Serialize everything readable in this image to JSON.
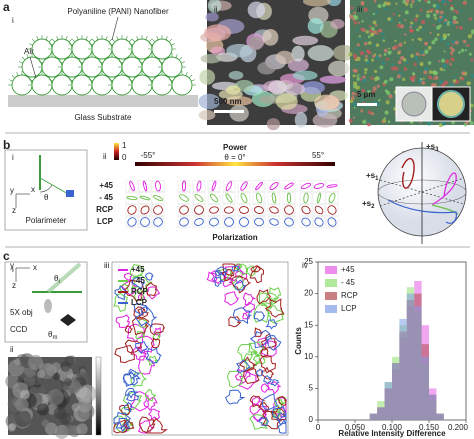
{
  "panels": {
    "a": {
      "label": "a",
      "i": {
        "label": "i",
        "fiber_label": "Polyaniline (PANI) Nanofiber",
        "air_label": "Air",
        "substrate_label": "Glass Substrate"
      },
      "ii": {
        "label": "ii",
        "scale_bar": "500 nm"
      },
      "iii": {
        "label": "iii",
        "scale_bar": "5 µm"
      }
    },
    "b": {
      "label": "b",
      "i": {
        "label": "i",
        "axis_y": "y",
        "axis_x": "x",
        "axis_z": "z",
        "angle": "θ",
        "device": "Polarimeter"
      },
      "ii": {
        "label": "ii",
        "colorbar_ticks": [
          1,
          0
        ],
        "angle_left": "-55°",
        "power_label": "Power",
        "angle_center": "θ = 0°",
        "angle_right": "55°",
        "rows": [
          {
            "name": "+45",
            "color": "#e020e0"
          },
          {
            "name": "- 45",
            "color": "#6cc04a"
          },
          {
            "name": "RCP",
            "color": "#a31f1f"
          },
          {
            "name": "LCP",
            "color": "#3a62d0"
          }
        ],
        "polarization_label": "Polarization"
      },
      "iii": {
        "label": "iii",
        "s3": {
          "text": "+s",
          "sub": "3"
        },
        "s1": {
          "text": "+s",
          "sub": "1"
        },
        "s2": {
          "text": "+s",
          "sub": "2"
        }
      }
    },
    "c": {
      "label": "c",
      "i": {
        "label": "i",
        "axis_y": "y",
        "axis_x": "x",
        "axis_z": "z",
        "theta_i": {
          "text": "θ",
          "sub": "i"
        },
        "objective": "5X obj",
        "camera": "CCD",
        "theta_m": {
          "text": "θ",
          "sub": "m"
        }
      },
      "ii": {
        "label": "ii"
      },
      "iii": {
        "label": "iii",
        "series": [
          {
            "name": "+45",
            "color": "#e020e0"
          },
          {
            "name": "- 45",
            "color": "#6cd04a"
          },
          {
            "name": "RCP",
            "color": "#a31f1f"
          },
          {
            "name": "LCP",
            "color": "#3a62d0"
          }
        ]
      },
      "iv": {
        "label": "iv",
        "type": "histogram",
        "xlabel": "Relative Intensity Difference",
        "ylabel": "Counts",
        "bins": [
          0.07,
          0.08,
          0.09,
          0.1,
          0.11,
          0.12,
          0.13,
          0.14,
          0.15,
          0.16,
          0.17
        ],
        "series": [
          {
            "name": "+45",
            "color": "#e65ce6",
            "values": [
              1,
              2,
              5,
              8,
              13,
              18,
              22,
              15,
              5,
              1
            ]
          },
          {
            "name": "- 45",
            "color": "#8fe070",
            "values": [
              1,
              3,
              6,
              10,
              15,
              21,
              17,
              9,
              3,
              1
            ]
          },
          {
            "name": "RCP",
            "color": "#b04a4a",
            "values": [
              1,
              2,
              5,
              9,
              14,
              19,
              20,
              12,
              4,
              1
            ]
          },
          {
            "name": "LCP",
            "color": "#7f9ee8",
            "values": [
              1,
              2,
              6,
              9,
              16,
              20,
              18,
              10,
              4,
              1
            ]
          }
        ],
        "xlim": [
          0,
          0.2
        ],
        "xticks": [
          {
            "value": 0,
            "label": "0"
          },
          {
            "value": 0.05,
            "label": "0.050"
          },
          {
            "value": 0.1,
            "label": "0.100"
          },
          {
            "value": 0.15,
            "label": "0.150"
          },
          {
            "value": 0.2,
            "label": "0.200"
          }
        ],
        "ylim": [
          0,
          25
        ],
        "yticks": [
          0,
          5,
          10,
          15,
          20,
          25
        ]
      }
    }
  }
}
